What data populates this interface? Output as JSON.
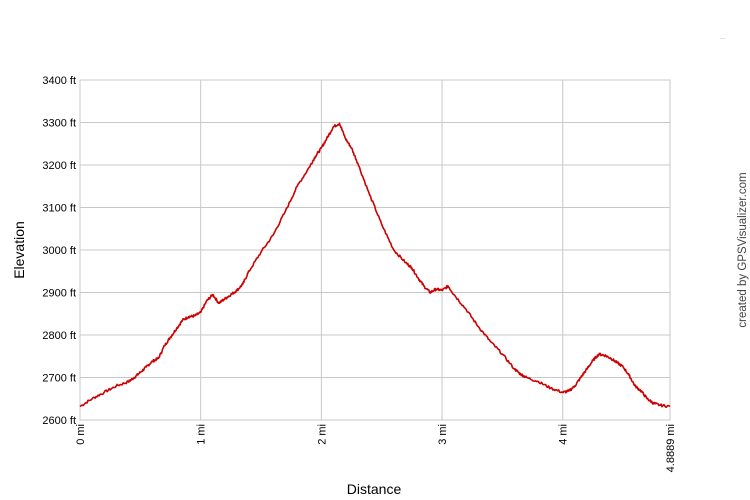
{
  "chart_data": {
    "type": "line",
    "xlabel": "Distance",
    "ylabel": "Elevation",
    "credit": "created by GPSVisualizer.com",
    "corner_mark": "...",
    "xlim": [
      0,
      4.8889
    ],
    "ylim": [
      2600,
      3400
    ],
    "x_ticks": [
      {
        "value": 0,
        "label": "0 mi"
      },
      {
        "value": 1,
        "label": "1 mi"
      },
      {
        "value": 2,
        "label": "2 mi"
      },
      {
        "value": 3,
        "label": "3 mi"
      },
      {
        "value": 4,
        "label": "4 mi"
      },
      {
        "value": 4.8889,
        "label": "4.8889 mi"
      }
    ],
    "y_ticks": [
      {
        "value": 2600,
        "label": "2600 ft"
      },
      {
        "value": 2700,
        "label": "2700 ft"
      },
      {
        "value": 2800,
        "label": "2800 ft"
      },
      {
        "value": 2900,
        "label": "2900 ft"
      },
      {
        "value": 3000,
        "label": "3000 ft"
      },
      {
        "value": 3100,
        "label": "3100 ft"
      },
      {
        "value": 3200,
        "label": "3200 ft"
      },
      {
        "value": 3300,
        "label": "3300 ft"
      },
      {
        "value": 3400,
        "label": "3400 ft"
      }
    ],
    "grid": true,
    "line_color": "#cc0000",
    "grid_color": "#c8c8c8",
    "series": [
      {
        "x": [
          0,
          0.1,
          0.2,
          0.3,
          0.4,
          0.45,
          0.5,
          0.55,
          0.6,
          0.65,
          0.7,
          0.75,
          0.8,
          0.85,
          0.9,
          0.95,
          1.0,
          1.05,
          1.1,
          1.15,
          1.2,
          1.25,
          1.3,
          1.35,
          1.4,
          1.5,
          1.6,
          1.7,
          1.8,
          1.9,
          1.95,
          2.0,
          2.05,
          2.1,
          2.15,
          2.2,
          2.25,
          2.3,
          2.4,
          2.5,
          2.6,
          2.7,
          2.75,
          2.8,
          2.85,
          2.9,
          2.95,
          3.0,
          3.05,
          3.1,
          3.2,
          3.3,
          3.4,
          3.5,
          3.6,
          3.65,
          3.7,
          3.8,
          3.9,
          4.0,
          4.05,
          4.1,
          4.15,
          4.2,
          4.25,
          4.3,
          4.35,
          4.4,
          4.45,
          4.5,
          4.55,
          4.6,
          4.65,
          4.7,
          4.75,
          4.8,
          4.8889
        ],
        "y": [
          2632,
          2650,
          2665,
          2680,
          2690,
          2700,
          2712,
          2725,
          2738,
          2745,
          2775,
          2795,
          2815,
          2835,
          2843,
          2845,
          2853,
          2880,
          2895,
          2875,
          2885,
          2895,
          2905,
          2920,
          2950,
          2995,
          3035,
          3090,
          3150,
          3195,
          3220,
          3240,
          3265,
          3290,
          3298,
          3262,
          3240,
          3205,
          3130,
          3060,
          3000,
          2970,
          2958,
          2935,
          2915,
          2900,
          2908,
          2905,
          2915,
          2895,
          2860,
          2820,
          2785,
          2755,
          2720,
          2708,
          2700,
          2690,
          2675,
          2665,
          2668,
          2680,
          2700,
          2720,
          2740,
          2755,
          2752,
          2745,
          2735,
          2725,
          2705,
          2680,
          2668,
          2650,
          2640,
          2635,
          2632
        ]
      }
    ]
  }
}
